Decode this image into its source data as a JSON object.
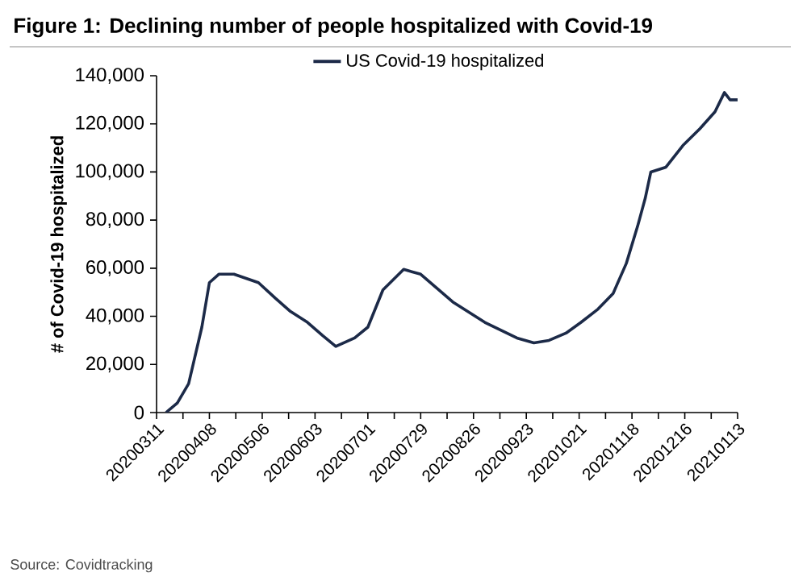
{
  "chart_data": {
    "type": "line",
    "title": "Figure 1: Declining number of people hospitalized with Covid-19",
    "ylabel": "# of Covid-19 hospitalized",
    "annotations": [
      "Source: Covidtracking"
    ],
    "legend": "top",
    "x": [
      "2020-03-16",
      "2020-03-22",
      "2020-03-28",
      "2020-04-04",
      "2020-04-08",
      "2020-04-13",
      "2020-04-21",
      "2020-05-04",
      "2020-05-13",
      "2020-05-21",
      "2020-05-30",
      "2020-06-07",
      "2020-06-14",
      "2020-06-24",
      "2020-07-01",
      "2020-07-09",
      "2020-07-20",
      "2020-07-29",
      "2020-08-15",
      "2020-09-01",
      "2020-09-18",
      "2020-09-27",
      "2020-10-05",
      "2020-10-14",
      "2020-10-22",
      "2020-10-31",
      "2020-11-08",
      "2020-11-15",
      "2020-11-21",
      "2020-11-25",
      "2020-11-28",
      "2020-12-06",
      "2020-12-15",
      "2020-12-24",
      "2021-01-01",
      "2021-01-06",
      "2021-01-09",
      "2021-01-13"
    ],
    "series": [
      {
        "name": "US Covid-19 hospitalized",
        "color": "#1c2a48",
        "values": [
          0,
          4000,
          12000,
          35500,
          54000,
          57500,
          57500,
          54000,
          47500,
          42000,
          37500,
          32000,
          27500,
          31000,
          35500,
          51000,
          59500,
          57500,
          46000,
          37500,
          31000,
          29000,
          30000,
          33000,
          37500,
          43000,
          49500,
          62000,
          77500,
          89000,
          100000,
          102000,
          111000,
          118000,
          125000,
          133000,
          130000,
          130000
        ]
      }
    ],
    "xlim": [
      "2020-03-11",
      "2021-01-13"
    ],
    "xticks": [
      {
        "value": "2020-03-11",
        "label": "20200311"
      },
      {
        "value": "2020-03-25",
        "label": null
      },
      {
        "value": "2020-04-08",
        "label": "20200408"
      },
      {
        "value": "2020-04-22",
        "label": null
      },
      {
        "value": "2020-05-06",
        "label": "20200506"
      },
      {
        "value": "2020-05-20",
        "label": null
      },
      {
        "value": "2020-06-03",
        "label": "20200603"
      },
      {
        "value": "2020-06-17",
        "label": null
      },
      {
        "value": "2020-07-01",
        "label": "20200701"
      },
      {
        "value": "2020-07-15",
        "label": null
      },
      {
        "value": "2020-07-29",
        "label": "20200729"
      },
      {
        "value": "2020-08-12",
        "label": null
      },
      {
        "value": "2020-08-26",
        "label": "20200826"
      },
      {
        "value": "2020-09-09",
        "label": null
      },
      {
        "value": "2020-09-23",
        "label": "20200923"
      },
      {
        "value": "2020-10-07",
        "label": null
      },
      {
        "value": "2020-10-21",
        "label": "20201021"
      },
      {
        "value": "2020-11-04",
        "label": null
      },
      {
        "value": "2020-11-18",
        "label": "20201118"
      },
      {
        "value": "2020-12-02",
        "label": null
      },
      {
        "value": "2020-12-16",
        "label": "20201216"
      },
      {
        "value": "2020-12-30",
        "label": null
      },
      {
        "value": "2021-01-13",
        "label": "20210113"
      }
    ],
    "ylim": [
      0,
      140000
    ],
    "yticks": [
      {
        "value": 0,
        "label": "0"
      },
      {
        "value": 20000,
        "label": "20,000"
      },
      {
        "value": 40000,
        "label": "40,000"
      },
      {
        "value": 60000,
        "label": "60,000"
      },
      {
        "value": 80000,
        "label": "80,000"
      },
      {
        "value": 100000,
        "label": "100,000"
      },
      {
        "value": 120000,
        "label": "120,000"
      },
      {
        "value": 140000,
        "label": "140,000"
      }
    ]
  }
}
